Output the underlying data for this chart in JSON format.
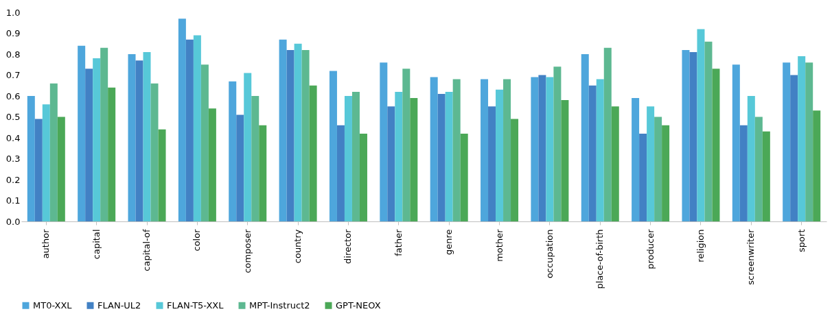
{
  "chart_data": {
    "type": "bar",
    "categories": [
      "author",
      "capital",
      "capital-of",
      "color",
      "composer",
      "country",
      "director",
      "father",
      "genre",
      "mother",
      "occupation",
      "place-of-birth",
      "producer",
      "religion",
      "screenwriter",
      "sport"
    ],
    "series": [
      {
        "name": "MT0-XXL",
        "color": "#4ea6dc",
        "values": [
          0.6,
          0.84,
          0.8,
          0.97,
          0.67,
          0.87,
          0.72,
          0.76,
          0.69,
          0.68,
          0.69,
          0.8,
          0.59,
          0.82,
          0.75,
          0.76
        ]
      },
      {
        "name": "FLAN-UL2",
        "color": "#4281c4",
        "values": [
          0.49,
          0.73,
          0.77,
          0.87,
          0.51,
          0.82,
          0.46,
          0.55,
          0.61,
          0.55,
          0.7,
          0.65,
          0.42,
          0.81,
          0.46,
          0.7
        ]
      },
      {
        "name": "FLAN-T5-XXL",
        "color": "#57c8d8",
        "values": [
          0.56,
          0.78,
          0.81,
          0.89,
          0.71,
          0.85,
          0.6,
          0.62,
          0.62,
          0.63,
          0.69,
          0.68,
          0.55,
          0.92,
          0.6,
          0.79
        ]
      },
      {
        "name": "MPT-Instruct2",
        "color": "#5db891",
        "values": [
          0.66,
          0.83,
          0.66,
          0.75,
          0.6,
          0.82,
          0.62,
          0.73,
          0.68,
          0.68,
          0.74,
          0.83,
          0.5,
          0.86,
          0.5,
          0.76
        ]
      },
      {
        "name": "GPT-NEOX",
        "color": "#4ba857",
        "values": [
          0.5,
          0.64,
          0.44,
          0.54,
          0.46,
          0.65,
          0.42,
          0.59,
          0.42,
          0.49,
          0.58,
          0.55,
          0.46,
          0.73,
          0.43,
          0.53
        ]
      }
    ],
    "ylim": [
      0,
      1.0
    ],
    "yticks": [
      {
        "value": 0,
        "label": "0.0"
      },
      {
        "value": 0.1,
        "label": "0.1"
      },
      {
        "value": 0.2,
        "label": "0.2"
      },
      {
        "value": 0.3,
        "label": "0.3"
      },
      {
        "value": 0.4,
        "label": "0.4"
      },
      {
        "value": 0.5,
        "label": "0.5"
      },
      {
        "value": 0.6,
        "label": "0.6"
      },
      {
        "value": 0.7,
        "label": "0.7"
      },
      {
        "value": 0.8,
        "label": "0.8"
      },
      {
        "value": 0.9,
        "label": "0.9"
      },
      {
        "value": 1.0,
        "label": "1.0"
      }
    ],
    "grid": false,
    "legend": "bottom"
  }
}
